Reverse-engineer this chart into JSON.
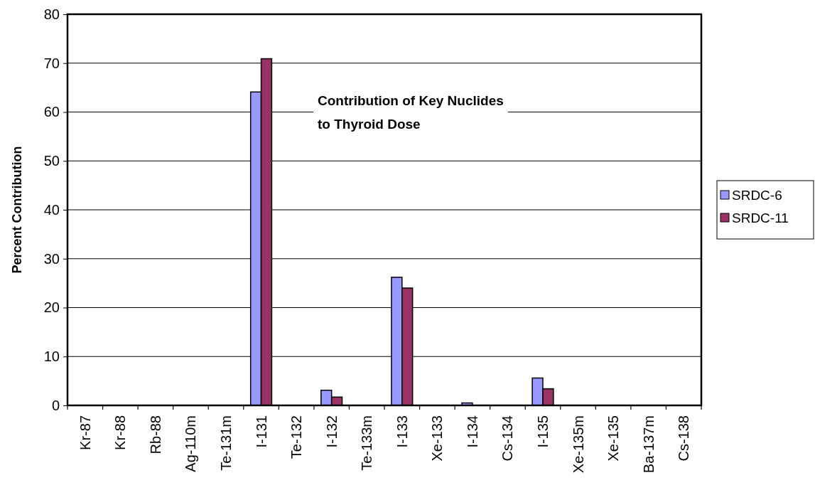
{
  "chart_data": {
    "type": "bar",
    "title": "Contribution of Key Nuclides\nto Thyroid Dose",
    "ylabel": "Percent Contribution",
    "categories": [
      "Kr-87",
      "Kr-88",
      "Rb-88",
      "Ag-110m",
      "Te-131m",
      "I-131",
      "Te-132",
      "I-132",
      "Te-133m",
      "I-133",
      "Xe-133",
      "I-134",
      "Cs-134",
      "I-135",
      "Xe-135m",
      "Xe-135",
      "Ba-137m",
      "Cs-138"
    ],
    "series": [
      {
        "name": "SRDC-6",
        "color": "#9999ff",
        "values": [
          0,
          0,
          0,
          0,
          0,
          64.1,
          0,
          3.1,
          0,
          26.2,
          0,
          0.5,
          0,
          5.6,
          0,
          0,
          0,
          0
        ]
      },
      {
        "name": "SRDC-11",
        "color": "#993366",
        "values": [
          0,
          0,
          0,
          0,
          0,
          70.9,
          0,
          1.7,
          0,
          24.0,
          0,
          0,
          0,
          3.4,
          0,
          0,
          0,
          0
        ]
      }
    ],
    "ylim": [
      0,
      80
    ],
    "yticks": [
      0,
      10,
      20,
      30,
      40,
      50,
      60,
      70,
      80
    ],
    "grid": "y",
    "legend": "right"
  }
}
